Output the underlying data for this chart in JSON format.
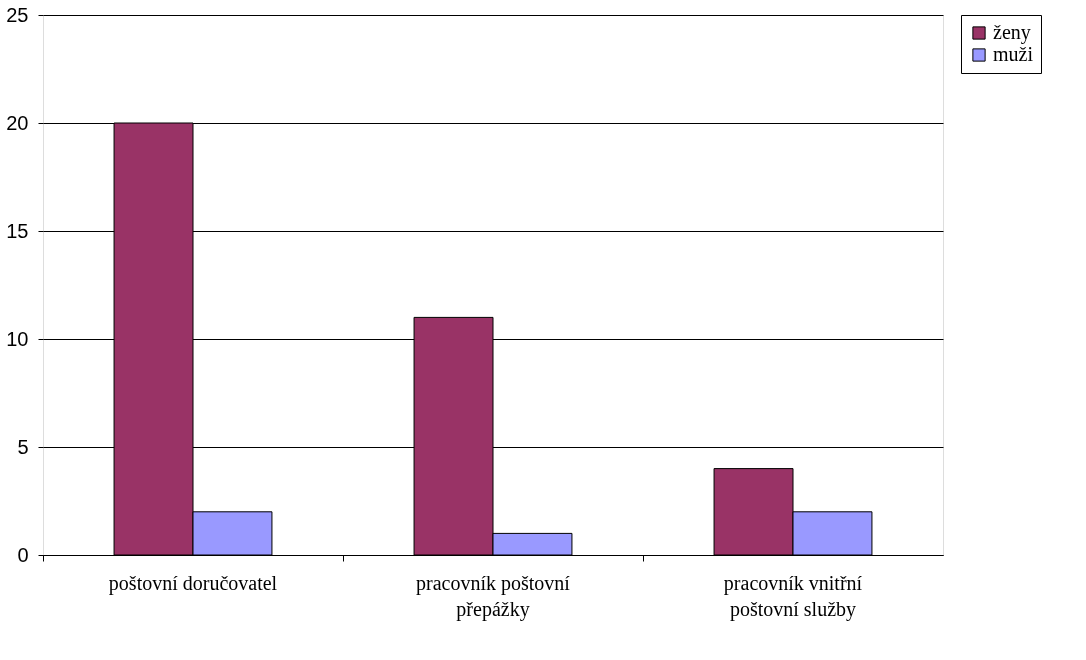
{
  "chart_data": {
    "type": "bar",
    "categories": [
      "poštovní doručovatel",
      "pracovník poštovní přepážky",
      "pracovník vnitřní poštovní služby"
    ],
    "series": [
      {
        "name": "ženy",
        "color": "#993366",
        "values": [
          20,
          11,
          4
        ]
      },
      {
        "name": "muži",
        "color": "#9999ff",
        "values": [
          2,
          1,
          2
        ]
      }
    ],
    "ylim": [
      0,
      25
    ],
    "yticks": [
      0,
      5,
      10,
      15,
      20,
      25
    ],
    "grid": "y",
    "legend": "right"
  }
}
